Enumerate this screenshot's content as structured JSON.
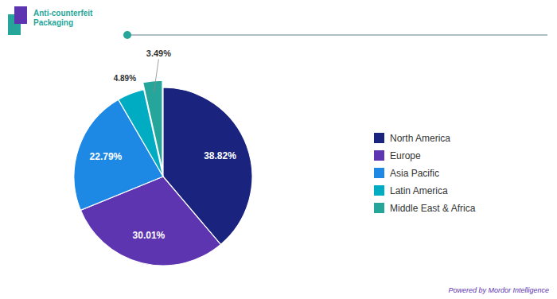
{
  "chart_data": {
    "type": "pie",
    "categories": [
      "North America",
      "Europe",
      "Asia Pacific",
      "Latin America",
      "Middle East & Africa"
    ],
    "values": [
      38.82,
      30.01,
      22.79,
      4.89,
      3.49
    ],
    "value_labels": [
      "38.82%",
      "30.01%",
      "22.79%",
      "4.89%",
      "3.49%"
    ],
    "colors": [
      "#1a237e",
      "#5e35b1",
      "#1e88e5",
      "#00acc1",
      "#26a69a"
    ],
    "data_labels": true,
    "legend": "right",
    "annotations": [
      "Anti-counterfeit\nPackaging",
      "Powered by Mordor Intelligence"
    ]
  }
}
